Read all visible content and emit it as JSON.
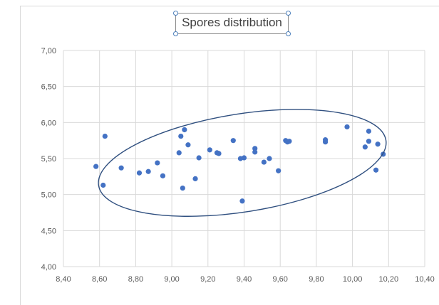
{
  "chart_data": {
    "type": "scatter",
    "title": "Spores distribution",
    "xlim": [
      8.4,
      10.4
    ],
    "ylim": [
      4.0,
      7.0
    ],
    "x_ticks": [
      "8,40",
      "8,60",
      "8,80",
      "9,00",
      "9,20",
      "9,40",
      "9,60",
      "9,80",
      "10,00",
      "10,20",
      "10,40"
    ],
    "y_ticks": [
      "4,00",
      "4,50",
      "5,00",
      "5,50",
      "6,00",
      "6,50",
      "7,00"
    ],
    "grid": true,
    "marker_color": "#4472c4",
    "series": [
      {
        "points": [
          [
            8.58,
            5.39
          ],
          [
            8.62,
            5.13
          ],
          [
            8.63,
            5.81
          ],
          [
            8.72,
            5.37
          ],
          [
            8.82,
            5.3
          ],
          [
            8.87,
            5.32
          ],
          [
            8.92,
            5.44
          ],
          [
            8.95,
            5.26
          ],
          [
            9.04,
            5.58
          ],
          [
            9.05,
            5.81
          ],
          [
            9.06,
            5.09
          ],
          [
            9.07,
            5.9
          ],
          [
            9.09,
            5.69
          ],
          [
            9.13,
            5.22
          ],
          [
            9.15,
            5.51
          ],
          [
            9.21,
            5.62
          ],
          [
            9.25,
            5.58
          ],
          [
            9.26,
            5.57
          ],
          [
            9.34,
            5.75
          ],
          [
            9.38,
            5.5
          ],
          [
            9.39,
            4.91
          ],
          [
            9.4,
            5.51
          ],
          [
            9.46,
            5.64
          ],
          [
            9.46,
            5.59
          ],
          [
            9.51,
            5.45
          ],
          [
            9.54,
            5.5
          ],
          [
            9.59,
            5.33
          ],
          [
            9.63,
            5.75
          ],
          [
            9.64,
            5.73
          ],
          [
            9.65,
            5.74
          ],
          [
            9.85,
            5.76
          ],
          [
            9.85,
            5.73
          ],
          [
            9.97,
            5.94
          ],
          [
            10.07,
            5.66
          ],
          [
            10.09,
            5.88
          ],
          [
            10.09,
            5.74
          ],
          [
            10.13,
            5.34
          ],
          [
            10.14,
            5.7
          ],
          [
            10.17,
            5.56
          ]
        ]
      }
    ],
    "ellipse": {
      "cx": 9.39,
      "cy": 5.44,
      "rx": 0.805,
      "ry": 0.68,
      "rotate_deg": -9
    }
  }
}
